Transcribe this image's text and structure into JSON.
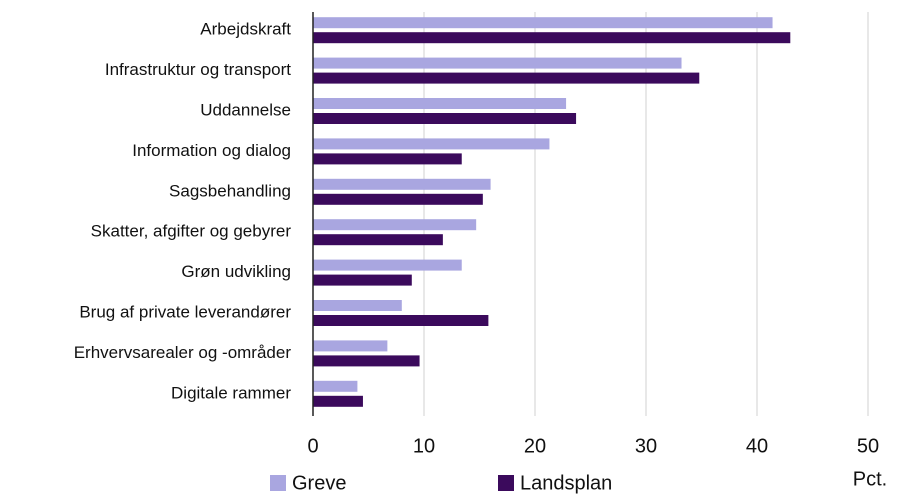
{
  "chart_data": {
    "type": "barh",
    "categories": [
      "Arbejdskraft",
      "Infrastruktur og transport",
      "Uddannelse",
      "Information og dialog",
      "Sagsbehandling",
      "Skatter, afgifter og gebyrer",
      "Grøn udvikling",
      "Brug af private leverandører",
      "Erhvervsarealer og -områder",
      "Digitale rammer"
    ],
    "series": [
      {
        "name": "Greve",
        "color": "#a9a6e0",
        "values": [
          41.4,
          33.2,
          22.8,
          21.3,
          16.0,
          14.7,
          13.4,
          8.0,
          6.7,
          4.0
        ]
      },
      {
        "name": "Landsplan",
        "color": "#3b0a5c",
        "values": [
          43.0,
          34.8,
          23.7,
          13.4,
          15.3,
          11.7,
          8.9,
          15.8,
          9.6,
          4.5
        ]
      }
    ],
    "xlim": [
      0,
      50
    ],
    "xticks": [
      0,
      10,
      20,
      30,
      40,
      50
    ],
    "xlabel": "Pct.",
    "grid": true,
    "legend": "bottom"
  }
}
